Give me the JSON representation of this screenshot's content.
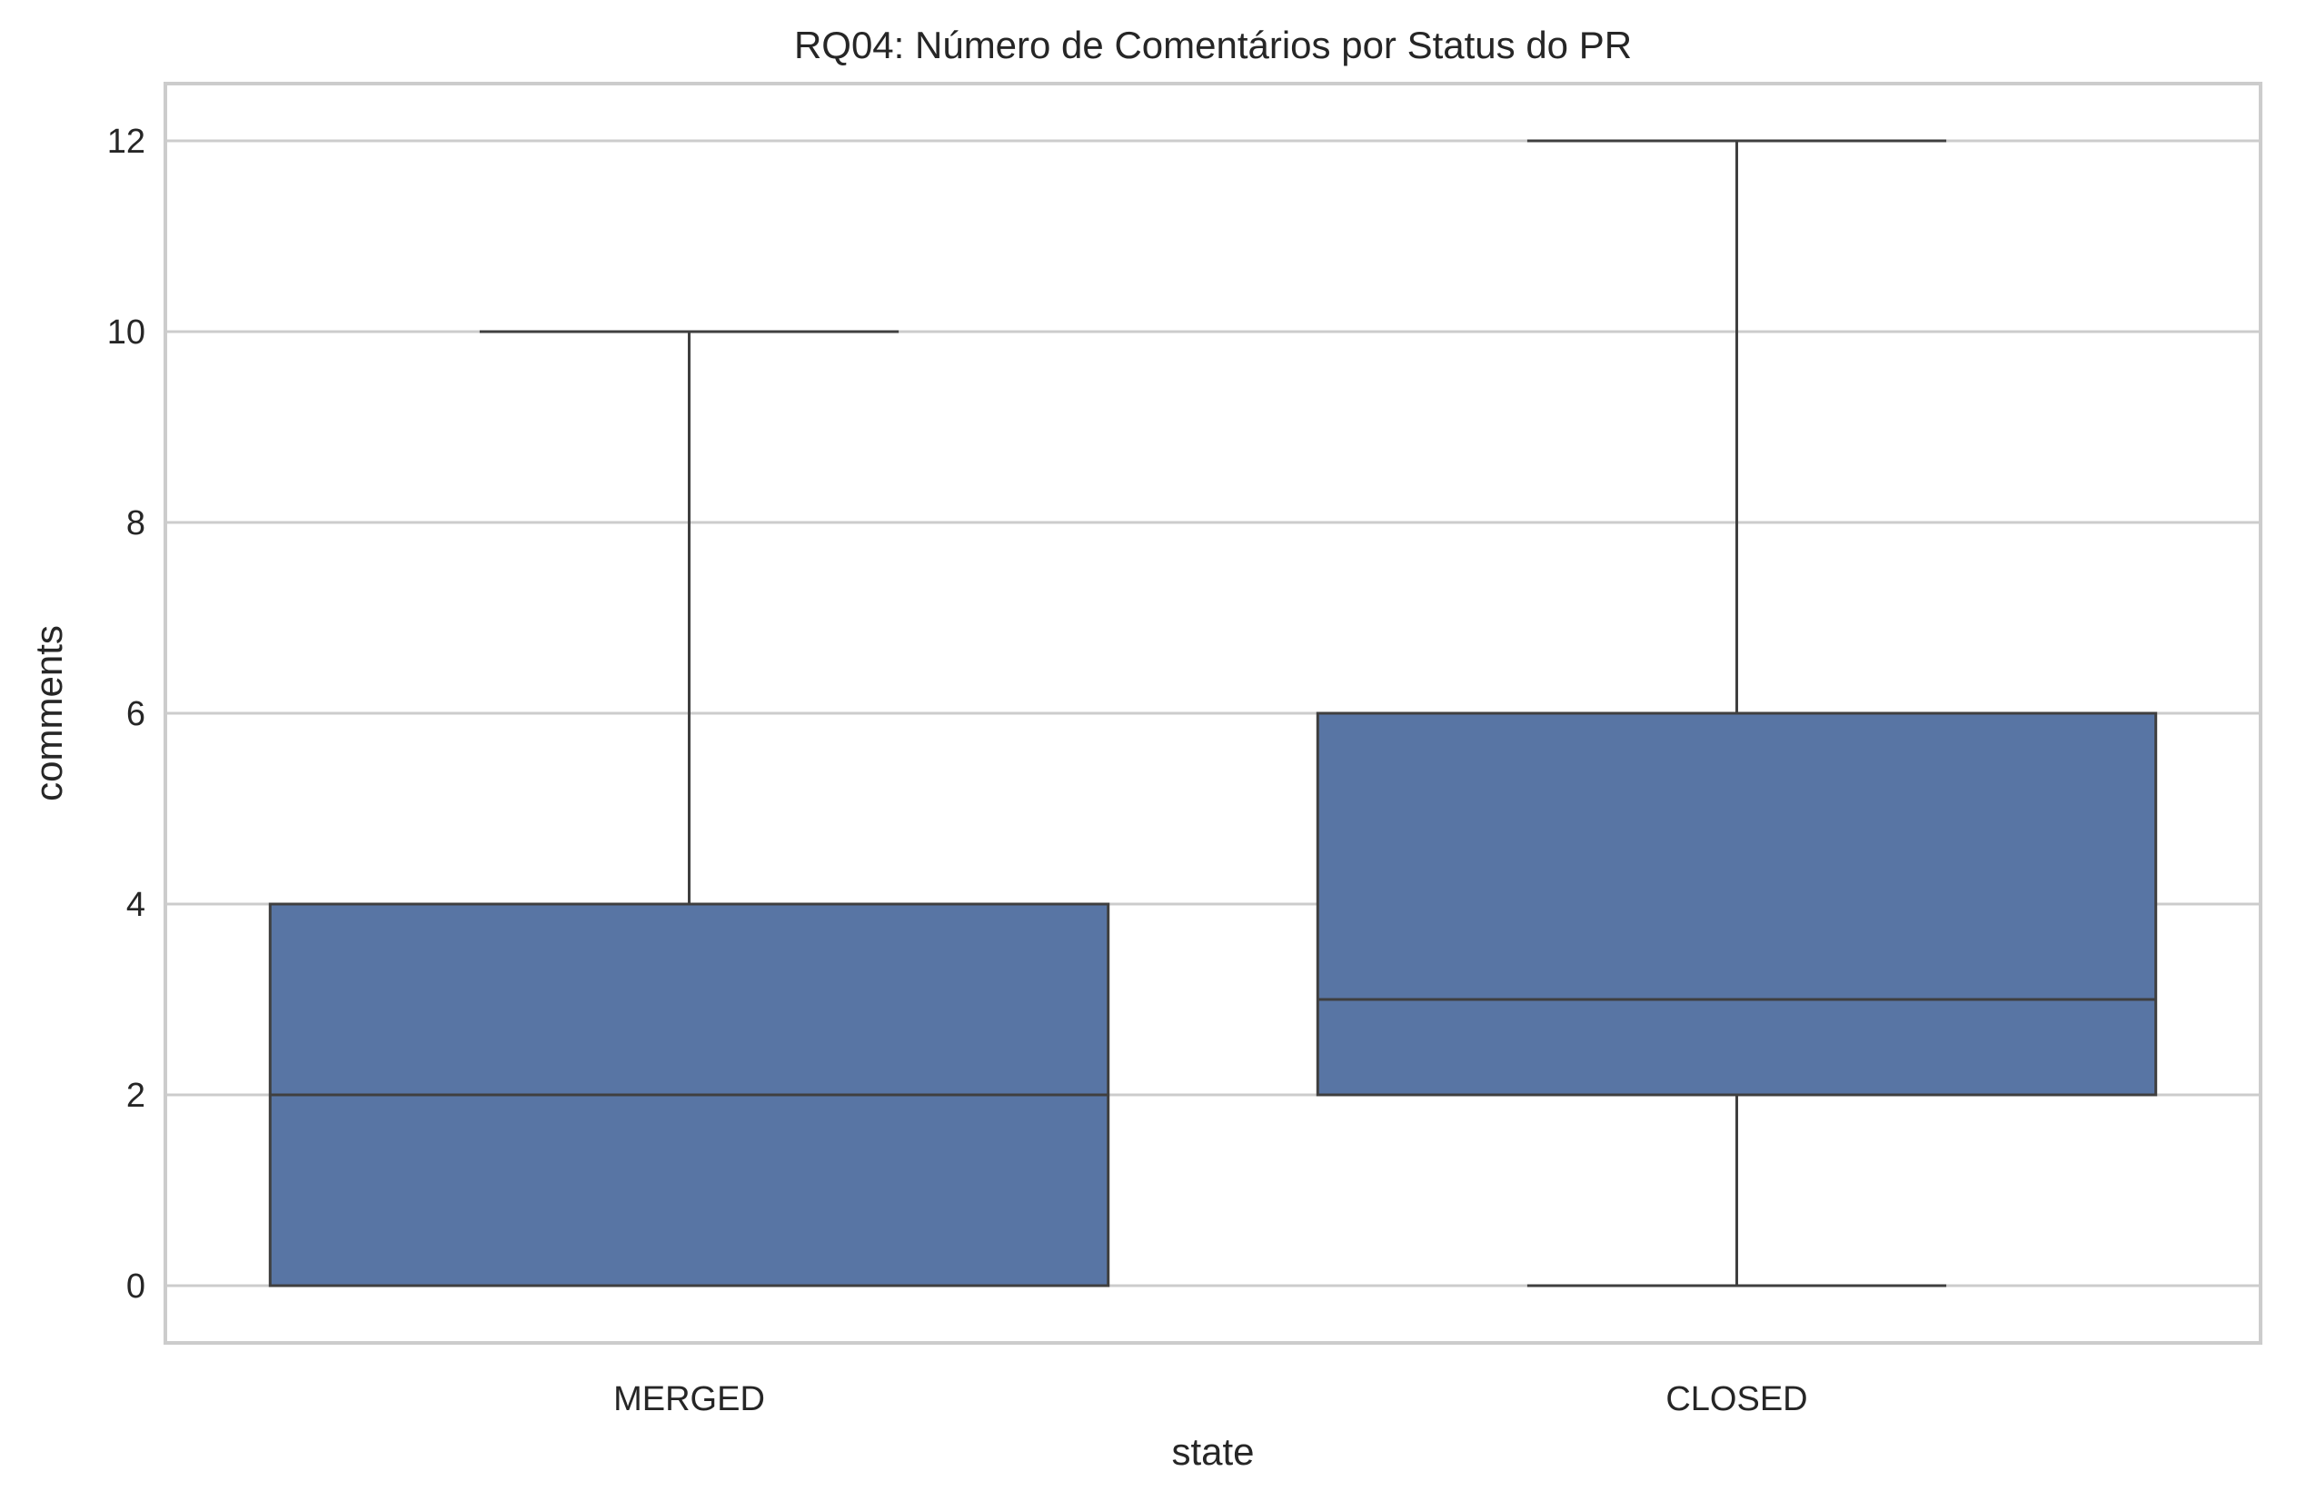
{
  "chart_data": {
    "type": "box",
    "title": "RQ04: Número de Comentários por Status do PR",
    "xlabel": "state",
    "ylabel": "comments",
    "categories": [
      "MERGED",
      "CLOSED"
    ],
    "boxes": [
      {
        "category": "MERGED",
        "whisker_low": 0,
        "q1": 0,
        "median": 2,
        "q3": 4,
        "whisker_high": 10
      },
      {
        "category": "CLOSED",
        "whisker_low": 0,
        "q1": 2,
        "median": 3,
        "q3": 6,
        "whisker_high": 12
      }
    ],
    "yticks": [
      0,
      2,
      4,
      6,
      8,
      10,
      12
    ],
    "ylim": [
      -0.6,
      12.6
    ],
    "grid": true,
    "colors": {
      "box": "#5875a4",
      "line": "#3f3f3f",
      "grid": "#cccccc",
      "spine": "#cccccc"
    }
  }
}
